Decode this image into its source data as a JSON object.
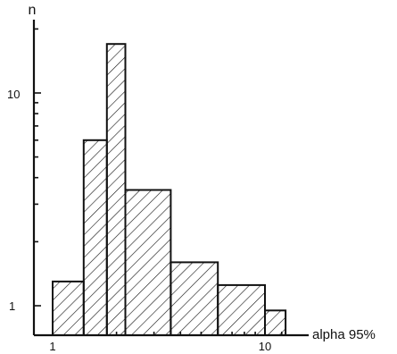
{
  "chart_data": {
    "type": "bar",
    "title": "",
    "xlabel": "alpha 95%",
    "ylabel": "n",
    "x_scale": "log",
    "y_scale": "log",
    "x_ticks": [
      1,
      10
    ],
    "x_tick_labels": [
      "1",
      "10"
    ],
    "y_ticks": [
      1,
      10
    ],
    "y_tick_labels": [
      "1",
      "10"
    ],
    "grid": false,
    "legend": "none",
    "fill": "diagonal hatch",
    "bins": [
      {
        "x0": 1.0,
        "x1": 1.4,
        "count": 1.3
      },
      {
        "x0": 1.4,
        "x1": 1.8,
        "count": 6
      },
      {
        "x0": 1.8,
        "x1": 2.2,
        "count": 17
      },
      {
        "x0": 2.2,
        "x1": 3.6,
        "count": 3.5
      },
      {
        "x0": 3.6,
        "x1": 6.0,
        "count": 1.6
      },
      {
        "x0": 6.0,
        "x1": 10.0,
        "count": 1.25
      },
      {
        "x0": 10.0,
        "x1": 12.5,
        "count": 0.95
      }
    ]
  }
}
